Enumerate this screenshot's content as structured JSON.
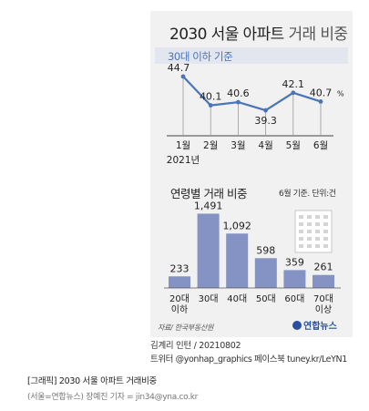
{
  "title": "2030 서울 아파트",
  "title_light": "거래 비중",
  "chart_data": [
    {
      "type": "line",
      "subtitle": "30대 이하 기준",
      "x": [
        "1월",
        "2월",
        "3월",
        "4월",
        "5월",
        "6월"
      ],
      "year_label": "2021년",
      "values": [
        44.7,
        40.1,
        40.6,
        39.3,
        42.1,
        40.7
      ],
      "value_labels": [
        "44.7",
        "40.1",
        "40.6",
        "39.3",
        "42.1",
        "40.7"
      ],
      "unit_suffix": "%",
      "color": "#4a74b8"
    },
    {
      "type": "bar",
      "title": "연령별 거래 비중",
      "note": "6월 기준. 단위:건",
      "categories": [
        [
          "20대",
          "이하"
        ],
        [
          "30대"
        ],
        [
          "40대"
        ],
        [
          "50대"
        ],
        [
          "60대"
        ],
        [
          "70대",
          "이상"
        ]
      ],
      "values": [
        233,
        1491,
        1092,
        598,
        359,
        261
      ],
      "value_labels": [
        "233",
        "1,491",
        "1,092",
        "598",
        "359",
        "261"
      ],
      "ylim": [
        0,
        1500
      ],
      "color": "#8592c4"
    }
  ],
  "source": "자료/ 한국부동산원",
  "logo": "연합뉴스",
  "credit_line1": "김계리 인턴 / 20210802",
  "credit_line2": "트위터 @yonhap_graphics  페이스북 tuney.kr/LeYN1",
  "caption_line1": "[그래픽] 2030 서울 아파트 거래비중",
  "caption_line2": "(서울=연합뉴스) 장예진 기자 = jin34@yna.co.kr"
}
